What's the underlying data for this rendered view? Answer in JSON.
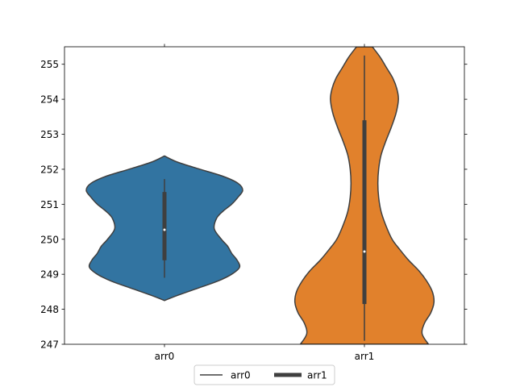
{
  "chart_data": {
    "type": "violin",
    "categories": [
      "arr0",
      "arr1"
    ],
    "ylim": [
      247,
      255.5
    ],
    "yticks": [
      247,
      248,
      249,
      250,
      251,
      252,
      253,
      254,
      255
    ],
    "ytick_labels": [
      "247",
      "248",
      "249",
      "250",
      "251",
      "252",
      "253",
      "254",
      "255"
    ],
    "series": [
      {
        "category": "arr0",
        "color": "#3274a1",
        "min": 248.9,
        "q1": 249.4,
        "median": 250.27,
        "q3": 251.35,
        "max": 251.72,
        "density": [
          [
            248.25,
            0.0
          ],
          [
            248.4,
            0.17
          ],
          [
            248.6,
            0.42
          ],
          [
            248.8,
            0.67
          ],
          [
            249.0,
            0.85
          ],
          [
            249.2,
            0.95
          ],
          [
            249.4,
            0.92
          ],
          [
            249.6,
            0.85
          ],
          [
            249.8,
            0.8
          ],
          [
            250.0,
            0.72
          ],
          [
            250.3,
            0.63
          ],
          [
            250.6,
            0.66
          ],
          [
            250.8,
            0.74
          ],
          [
            251.0,
            0.85
          ],
          [
            251.2,
            0.93
          ],
          [
            251.4,
            0.99
          ],
          [
            251.6,
            0.93
          ],
          [
            251.8,
            0.74
          ],
          [
            252.0,
            0.45
          ],
          [
            252.2,
            0.17
          ],
          [
            252.38,
            0.0
          ]
        ]
      },
      {
        "category": "arr1",
        "color": "#e1812c",
        "min": 247.1,
        "q1": 248.15,
        "median": 249.65,
        "q3": 253.4,
        "max": 255.25,
        "density": [
          [
            247.0,
            0.81
          ],
          [
            247.3,
            0.73
          ],
          [
            247.6,
            0.76
          ],
          [
            247.9,
            0.84
          ],
          [
            248.2,
            0.88
          ],
          [
            248.5,
            0.86
          ],
          [
            248.8,
            0.79
          ],
          [
            249.1,
            0.69
          ],
          [
            249.4,
            0.56
          ],
          [
            249.7,
            0.45
          ],
          [
            250.0,
            0.35
          ],
          [
            250.4,
            0.27
          ],
          [
            250.8,
            0.21
          ],
          [
            251.2,
            0.18
          ],
          [
            251.6,
            0.17
          ],
          [
            252.0,
            0.18
          ],
          [
            252.4,
            0.21
          ],
          [
            252.8,
            0.27
          ],
          [
            253.2,
            0.34
          ],
          [
            253.6,
            0.4
          ],
          [
            254.0,
            0.43
          ],
          [
            254.3,
            0.41
          ],
          [
            254.6,
            0.36
          ],
          [
            254.9,
            0.28
          ],
          [
            255.2,
            0.2
          ],
          [
            255.5,
            0.1
          ]
        ]
      }
    ],
    "legend": {
      "position": "lower-center",
      "entries": [
        {
          "label": "arr0",
          "style": "thin-line",
          "color": "#3f3f3f"
        },
        {
          "label": "arr1",
          "style": "thick-line",
          "color": "#3f3f3f"
        }
      ]
    }
  }
}
